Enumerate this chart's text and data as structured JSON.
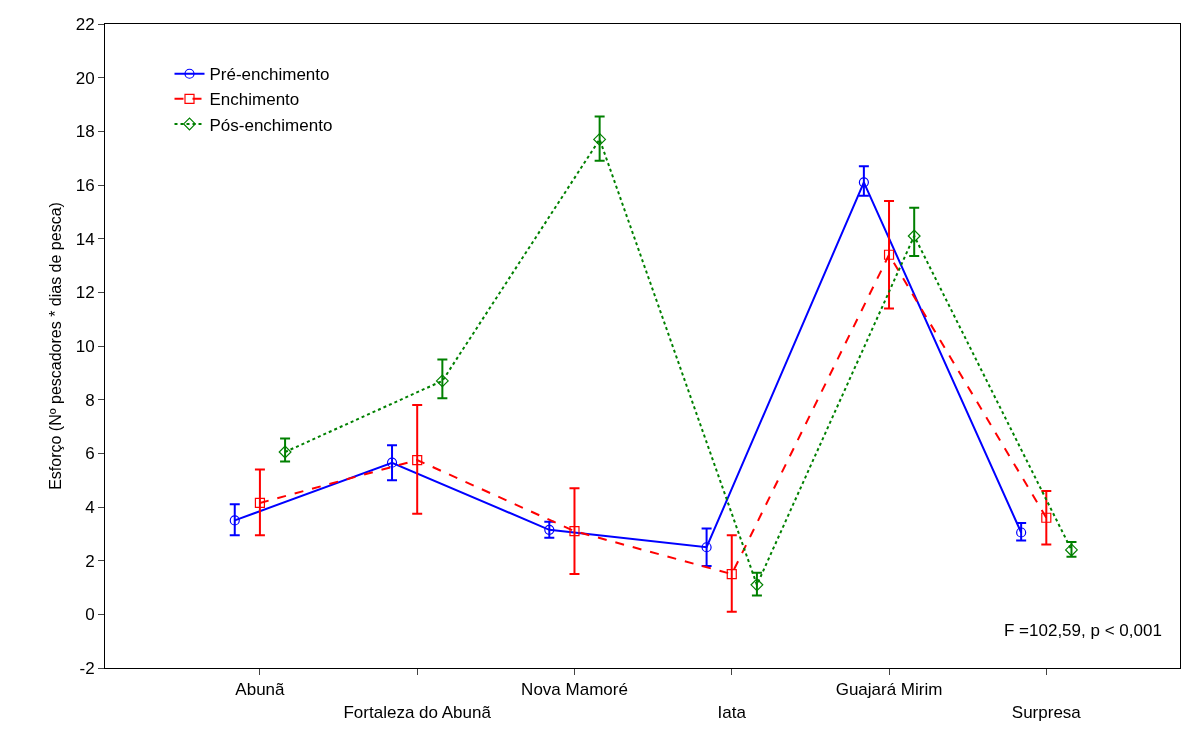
{
  "chart_data": {
    "type": "line",
    "ylabel": "Esforço (Nº pescadores * dias de pesca)",
    "categories": [
      "Abunã",
      "Fortaleza do Abunã",
      "Nova Mamoré",
      "Iata",
      "Guajará Mirim",
      "Surpresa"
    ],
    "series": [
      {
        "name": "Pré-enchimento",
        "color": "#0000ff",
        "marker": "circle",
        "line_style": "solid",
        "values": [
          3.5,
          5.65,
          3.15,
          2.5,
          16.1,
          3.05
        ],
        "errors": [
          [
            2.95,
            4.1
          ],
          [
            5.0,
            6.3
          ],
          [
            2.85,
            3.45
          ],
          [
            1.8,
            3.2
          ],
          [
            15.6,
            16.7
          ],
          [
            2.75,
            3.4
          ]
        ]
      },
      {
        "name": "Enchimento",
        "color": "#ff0000",
        "marker": "square",
        "line_style": "dashed",
        "values": [
          4.15,
          5.75,
          3.1,
          1.5,
          13.4,
          3.6
        ],
        "errors": [
          [
            2.95,
            5.4
          ],
          [
            3.75,
            7.8
          ],
          [
            1.5,
            4.7
          ],
          [
            0.1,
            2.95
          ],
          [
            11.4,
            15.4
          ],
          [
            2.6,
            4.6
          ]
        ]
      },
      {
        "name": "Pós-enchimento",
        "color": "#008000",
        "marker": "diamond",
        "line_style": "dotted",
        "values": [
          6.05,
          8.7,
          17.7,
          1.1,
          14.1,
          2.4
        ],
        "errors": [
          [
            5.7,
            6.55
          ],
          [
            8.05,
            9.5
          ],
          [
            16.9,
            18.55
          ],
          [
            0.7,
            1.55
          ],
          [
            13.35,
            15.15
          ],
          [
            2.15,
            2.7
          ]
        ]
      }
    ],
    "ylim": [
      -2,
      22
    ],
    "yticks": [
      -2,
      0,
      2,
      4,
      6,
      8,
      10,
      12,
      14,
      16,
      18,
      20,
      22
    ],
    "grid": false,
    "legend": "top left",
    "annotations": [
      "F =102,59, p < 0,001"
    ]
  }
}
